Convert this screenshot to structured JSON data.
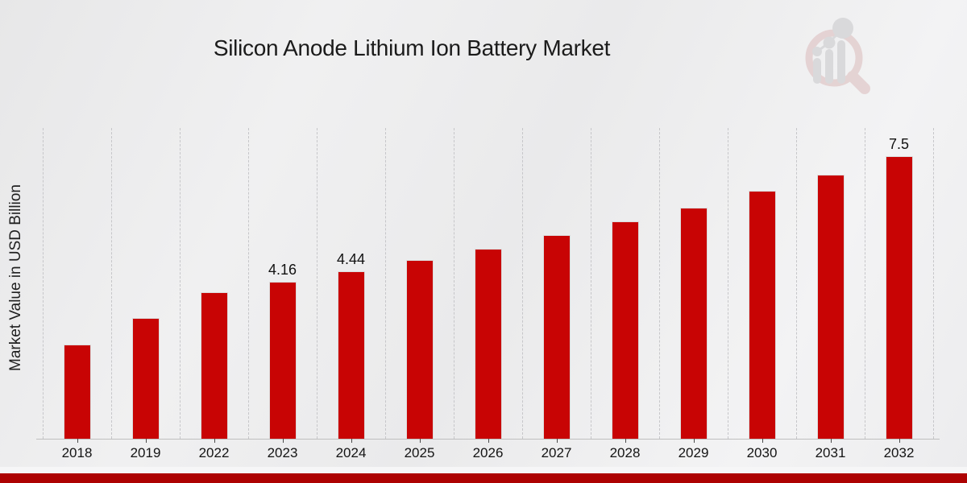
{
  "title": "Silicon Anode Lithium Ion Battery Market",
  "chart_data": {
    "type": "bar",
    "title": "Silicon Anode Lithium Ion Battery Market",
    "xlabel": "",
    "ylabel": "Market Value in USD Billion",
    "categories": [
      "2018",
      "2019",
      "2022",
      "2023",
      "2024",
      "2025",
      "2026",
      "2027",
      "2028",
      "2029",
      "2030",
      "2031",
      "2032"
    ],
    "values": [
      2.5,
      3.2,
      3.89,
      4.16,
      4.44,
      4.75,
      5.05,
      5.41,
      5.78,
      6.14,
      6.59,
      7.02,
      7.5
    ],
    "data_labels": [
      "",
      "",
      "",
      "4.16",
      "4.44",
      "",
      "",
      "",
      "",
      "",
      "",
      "",
      "7.5"
    ],
    "ylim": [
      0,
      8.25
    ],
    "grid": "vertical-dashed",
    "legend": "none",
    "bar_color": "#c80404"
  },
  "branding": {
    "logo": "magnifier-bar-chart-logo",
    "footer_bar_color": "#ad0202"
  }
}
